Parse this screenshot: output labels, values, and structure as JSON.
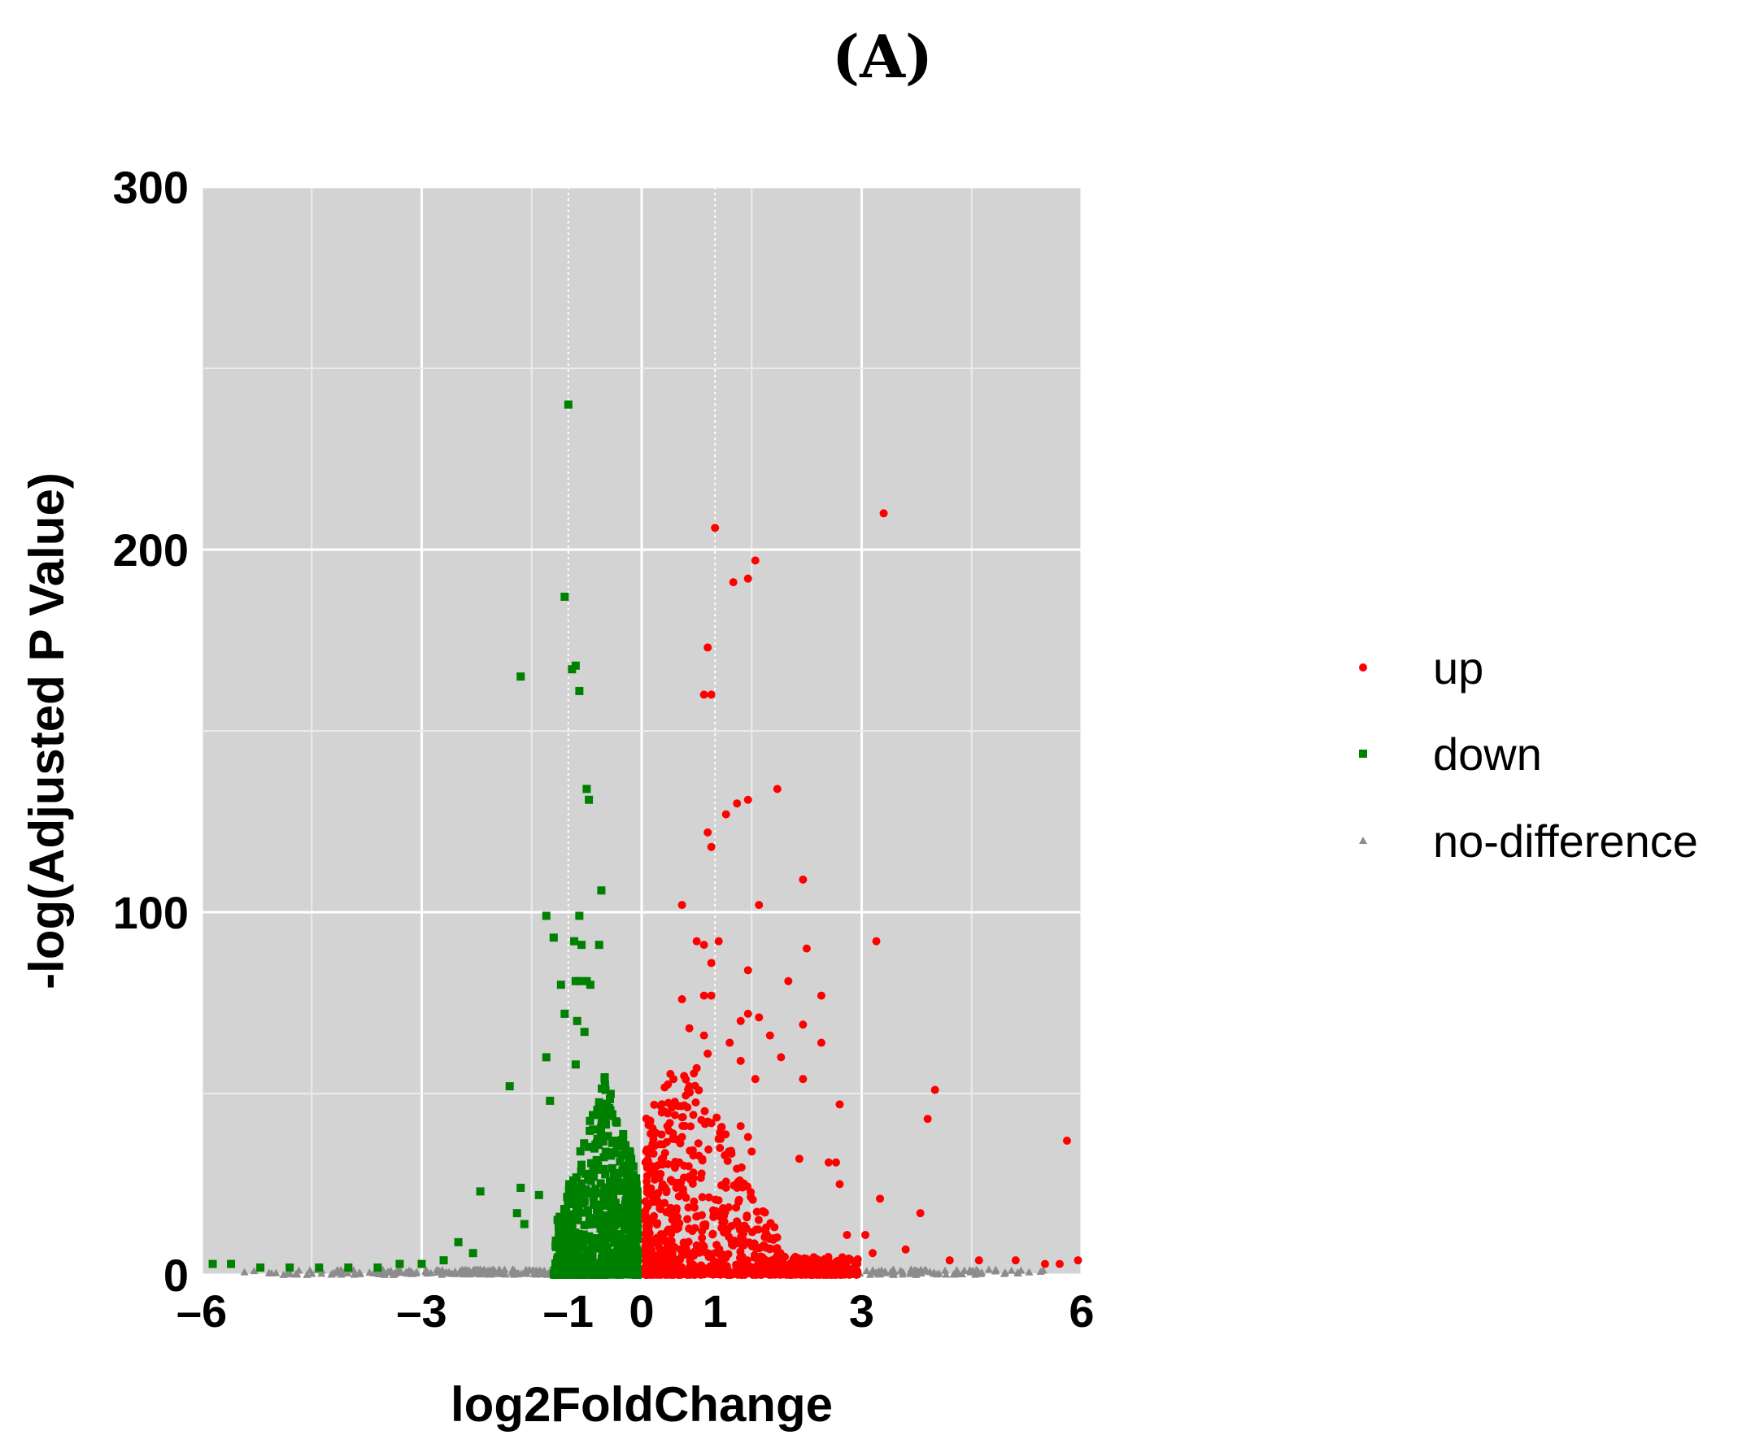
{
  "panel_label": "(A)",
  "chart_data": {
    "type": "scatter",
    "title": "",
    "xlabel": "log2FoldChange",
    "ylabel": "-log(Adjusted P Value)",
    "xlim": [
      -6,
      6
    ],
    "ylim": [
      0,
      300
    ],
    "x_ticks": [
      {
        "value": -6,
        "label": "–6"
      },
      {
        "value": -3,
        "label": "–3"
      },
      {
        "value": -1,
        "label": "–1"
      },
      {
        "value": 0,
        "label": "0"
      },
      {
        "value": 1,
        "label": "1"
      },
      {
        "value": 3,
        "label": "3"
      },
      {
        "value": 6,
        "label": "6"
      }
    ],
    "y_ticks": [
      {
        "value": 0,
        "label": "0"
      },
      {
        "value": 100,
        "label": "100"
      },
      {
        "value": 200,
        "label": "200"
      },
      {
        "value": 300,
        "label": "300"
      }
    ],
    "grid": true,
    "background": "#d3d3d3",
    "threshold_lines_x": [
      -1,
      1
    ],
    "legend": {
      "position": "right",
      "entries": [
        {
          "label": "up",
          "color": "#ff0000",
          "marker": "circle"
        },
        {
          "label": "down",
          "color": "#008000",
          "marker": "square"
        },
        {
          "label": "no-difference",
          "color": "#8c8c8c",
          "marker": "triangle"
        }
      ]
    },
    "series": [
      {
        "name": "up",
        "color": "#ff0000",
        "marker": "circle",
        "points": [
          [
            3.3,
            210
          ],
          [
            1.0,
            206
          ],
          [
            1.55,
            197
          ],
          [
            1.45,
            192
          ],
          [
            1.25,
            191
          ],
          [
            0.9,
            173
          ],
          [
            0.95,
            160
          ],
          [
            0.85,
            160
          ],
          [
            1.85,
            134
          ],
          [
            1.45,
            131
          ],
          [
            1.3,
            130
          ],
          [
            1.15,
            127
          ],
          [
            0.9,
            122
          ],
          [
            0.95,
            118
          ],
          [
            2.2,
            109
          ],
          [
            0.55,
            102
          ],
          [
            1.6,
            102
          ],
          [
            3.2,
            92
          ],
          [
            0.75,
            92
          ],
          [
            0.85,
            91
          ],
          [
            1.05,
            92
          ],
          [
            2.25,
            90
          ],
          [
            0.95,
            86
          ],
          [
            1.45,
            84
          ],
          [
            2.0,
            81
          ],
          [
            0.85,
            77
          ],
          [
            0.95,
            77
          ],
          [
            2.45,
            77
          ],
          [
            0.55,
            76
          ],
          [
            1.45,
            72
          ],
          [
            1.6,
            71
          ],
          [
            1.35,
            70
          ],
          [
            2.2,
            69
          ],
          [
            0.65,
            68
          ],
          [
            0.85,
            66
          ],
          [
            1.75,
            66
          ],
          [
            1.2,
            64
          ],
          [
            2.45,
            64
          ],
          [
            0.9,
            61
          ],
          [
            1.35,
            59
          ],
          [
            1.9,
            60
          ],
          [
            0.75,
            57
          ],
          [
            1.55,
            54
          ],
          [
            2.2,
            54
          ],
          [
            0.65,
            52
          ],
          [
            4.0,
            51
          ],
          [
            2.7,
            47
          ],
          [
            3.9,
            43
          ],
          [
            1.35,
            41
          ],
          [
            1.45,
            38
          ],
          [
            0.55,
            38
          ],
          [
            5.8,
            37
          ],
          [
            1.5,
            34
          ],
          [
            2.15,
            32
          ],
          [
            2.55,
            31
          ],
          [
            2.65,
            31
          ],
          [
            1.3,
            24
          ],
          [
            2.7,
            25
          ],
          [
            3.25,
            21
          ],
          [
            3.8,
            17
          ],
          [
            3.05,
            11
          ],
          [
            2.8,
            11
          ],
          [
            3.15,
            6
          ],
          [
            3.6,
            7
          ],
          [
            4.2,
            4
          ],
          [
            4.6,
            4
          ],
          [
            5.1,
            4
          ],
          [
            5.5,
            3
          ],
          [
            5.95,
            4
          ],
          [
            5.7,
            3
          ]
        ],
        "dense_region": {
          "x_range": [
            0.05,
            3.0
          ],
          "y_max_at_x0": 62,
          "description_count": 900
        }
      },
      {
        "name": "down",
        "color": "#008000",
        "marker": "square",
        "points": [
          [
            -1.0,
            240
          ],
          [
            -1.05,
            187
          ],
          [
            -0.9,
            168
          ],
          [
            -0.95,
            167
          ],
          [
            -1.65,
            165
          ],
          [
            -0.85,
            161
          ],
          [
            -0.75,
            134
          ],
          [
            -0.72,
            131
          ],
          [
            -1.3,
            99
          ],
          [
            -0.55,
            106
          ],
          [
            -0.85,
            99
          ],
          [
            -1.2,
            93
          ],
          [
            -0.92,
            92
          ],
          [
            -0.82,
            91
          ],
          [
            -0.58,
            91
          ],
          [
            -0.9,
            81
          ],
          [
            -0.85,
            81
          ],
          [
            -0.75,
            81
          ],
          [
            -0.7,
            80
          ],
          [
            -1.1,
            80
          ],
          [
            -1.05,
            72
          ],
          [
            -0.88,
            70
          ],
          [
            -0.78,
            67
          ],
          [
            -1.3,
            60
          ],
          [
            -0.9,
            58
          ],
          [
            -1.8,
            52
          ],
          [
            -1.25,
            48
          ],
          [
            -2.2,
            23
          ],
          [
            -1.65,
            24
          ],
          [
            -1.4,
            22
          ],
          [
            -1.7,
            17
          ],
          [
            -1.6,
            14
          ],
          [
            -2.5,
            9
          ],
          [
            -2.3,
            6
          ],
          [
            -2.7,
            4
          ],
          [
            -3.0,
            3
          ],
          [
            -3.3,
            3
          ],
          [
            -3.6,
            2
          ],
          [
            -4.0,
            2
          ],
          [
            -4.4,
            2
          ],
          [
            -4.8,
            2
          ],
          [
            -5.2,
            2
          ],
          [
            -5.6,
            3
          ],
          [
            -5.85,
            3
          ]
        ],
        "dense_region": {
          "x_range": [
            -1.2,
            -0.05
          ],
          "y_max_at_x0": 55,
          "description_count": 700
        }
      },
      {
        "name": "no-difference",
        "color": "#8c8c8c",
        "marker": "triangle",
        "dense_region": {
          "x_range": [
            -5.9,
            5.9
          ],
          "y_max": 1.5,
          "description_count": 600
        }
      }
    ]
  }
}
